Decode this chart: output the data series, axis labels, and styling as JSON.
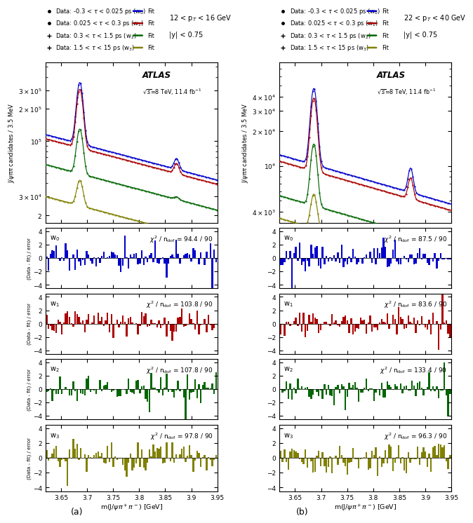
{
  "colors": {
    "w0": "#0000CC",
    "w1": "#AA0000",
    "w2": "#006600",
    "w3": "#808000"
  },
  "panel_a": {
    "pt_label": "12 < p$_T$ < 16 GeV",
    "y_label": "|y| < 0.75",
    "chi2_values": [
      "$\\chi^2$ / n$_{\\mathrm{dof}}$ = 94.4 / 90",
      "$\\chi^2$ / n$_{\\mathrm{dof}}$ = 103.8 / 90",
      "$\\chi^2$ / n$_{\\mathrm{dof}}$ = 107.8 / 90",
      "$\\chi^2$ / n$_{\\mathrm{dof}}$ = 97.8 / 90"
    ]
  },
  "panel_b": {
    "pt_label": "22 < p$_T$ < 40 GeV",
    "y_label": "|y| < 0.75",
    "chi2_values": [
      "$\\chi^2$ / n$_{\\mathrm{dof}}$ = 87.5 / 90",
      "$\\chi^2$ / n$_{\\mathrm{dof}}$ = 83.6 / 90",
      "$\\chi^2$ / n$_{\\mathrm{dof}}$ = 133.4 / 90",
      "$\\chi^2$ / n$_{\\mathrm{dof}}$ = 96.3 / 90"
    ]
  },
  "xmin": 3.62,
  "xmax": 3.95,
  "xticks": [
    3.65,
    3.7,
    3.75,
    3.8,
    3.85,
    3.9,
    3.95
  ],
  "xticklabels": [
    "3.65",
    "3.7",
    "3.75",
    "3.8",
    "3.85",
    "3.9",
    "3.95"
  ],
  "xlabel": "m(J/$\\psi\\pi^+\\pi^-$) [GeV]",
  "ylabel_main": "J/$\\psi\\pi\\pi$ candidates / 3.5 MeV",
  "ylabel_res": "(Data - fit) / error",
  "res_labels": [
    "w$_0$",
    "w$_1$",
    "w$_2$",
    "w$_3$"
  ],
  "tau_labels": [
    [
      "-0.3",
      "0.025",
      "0"
    ],
    [
      "0.025",
      "0.3",
      "1"
    ],
    [
      "0.3",
      "1.5",
      "2"
    ],
    [
      "1.5",
      "15",
      "3"
    ]
  ]
}
